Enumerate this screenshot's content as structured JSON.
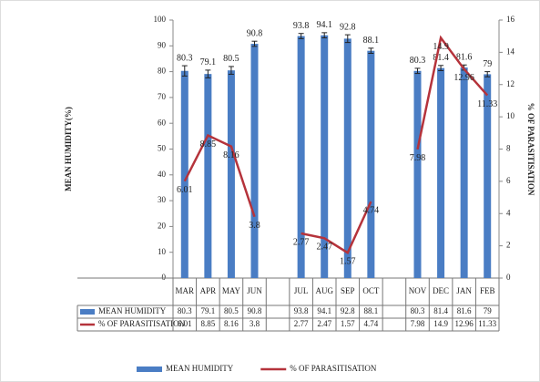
{
  "chart_data": {
    "type": "bar_line",
    "y_label": "MEAN HUMIDITY(%)",
    "y2_label": "% OF PARASITISATION",
    "categories": [
      "MAR",
      "APR",
      "MAY",
      "JUN",
      null,
      "JUL",
      "AUG",
      "SEP",
      "OCT",
      null,
      "NOV",
      "DEC",
      "JAN",
      "FEB"
    ],
    "series": [
      {
        "name": "MEAN HUMIDITY",
        "type": "bar",
        "color": "#4a7dc4",
        "values": [
          80.3,
          79.1,
          80.5,
          90.8,
          null,
          93.8,
          94.1,
          92.8,
          88.1,
          null,
          80.3,
          81.4,
          81.6,
          79
        ],
        "errors": [
          2,
          1.5,
          1.5,
          1,
          null,
          1,
          1,
          1.5,
          1,
          null,
          1,
          1,
          1,
          1
        ]
      },
      {
        "name": "% OF PARASITISATION",
        "type": "line",
        "axis": "y2",
        "color": "#b5333b",
        "values": [
          6.01,
          8.85,
          8.16,
          3.8,
          null,
          2.77,
          2.47,
          1.57,
          4.74,
          null,
          7.98,
          14.9,
          12.96,
          11.33
        ]
      }
    ],
    "ylim": [
      0,
      100
    ],
    "yticks": [
      0,
      10,
      20,
      30,
      40,
      50,
      60,
      70,
      80,
      90,
      100
    ],
    "y2lim": [
      0,
      16
    ],
    "y2ticks": [
      0,
      2,
      4,
      6,
      8,
      10,
      12,
      14,
      16
    ],
    "legend": "bottom"
  }
}
